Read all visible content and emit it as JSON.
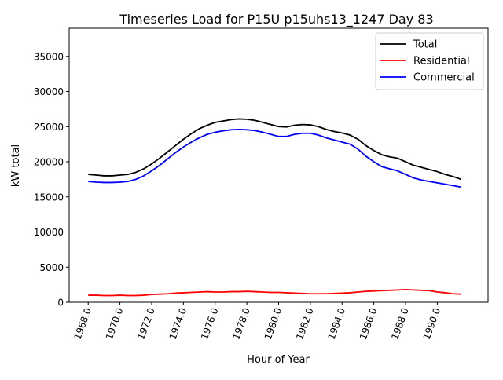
{
  "chart_data": {
    "type": "line",
    "title": "Timeseries Load for P15U p15uhs13_1247  Day 83",
    "xlabel": "Hour of Year",
    "ylabel": "kW total",
    "xlim": [
      1966.8,
      1993.2
    ],
    "ylim": [
      0,
      39000
    ],
    "xticks": [
      1968,
      1970,
      1972,
      1974,
      1976,
      1978,
      1980,
      1982,
      1984,
      1986,
      1988,
      1990
    ],
    "xtick_labels": [
      "1968.0",
      "1970.0",
      "1972.0",
      "1974.0",
      "1976.0",
      "1978.0",
      "1980.0",
      "1982.0",
      "1984.0",
      "1986.0",
      "1988.0",
      "1990.0"
    ],
    "yticks": [
      0,
      5000,
      10000,
      15000,
      20000,
      25000,
      30000,
      35000
    ],
    "ytick_labels": [
      "0",
      "5000",
      "10000",
      "15000",
      "20000",
      "25000",
      "30000",
      "35000"
    ],
    "legend_position": "top-right",
    "x": [
      1968.0,
      1968.5,
      1969.0,
      1969.5,
      1970.0,
      1970.5,
      1971.0,
      1971.5,
      1972.0,
      1972.5,
      1973.0,
      1973.5,
      1974.0,
      1974.5,
      1975.0,
      1975.5,
      1976.0,
      1976.5,
      1977.0,
      1977.5,
      1978.0,
      1978.5,
      1979.0,
      1979.5,
      1980.0,
      1980.5,
      1981.0,
      1981.5,
      1982.0,
      1982.5,
      1983.0,
      1983.5,
      1984.0,
      1984.5,
      1985.0,
      1985.5,
      1986.0,
      1986.5,
      1987.0,
      1987.5,
      1988.0,
      1988.5,
      1989.0,
      1989.5,
      1990.0,
      1990.5,
      1991.0,
      1991.5
    ],
    "series": [
      {
        "name": "Total",
        "color": "#000000",
        "values": [
          18200,
          18100,
          18000,
          18000,
          18100,
          18200,
          18500,
          19000,
          19700,
          20500,
          21400,
          22300,
          23200,
          24000,
          24700,
          25200,
          25600,
          25800,
          26000,
          26100,
          26050,
          25900,
          25600,
          25300,
          25000,
          24950,
          25200,
          25300,
          25250,
          25000,
          24600,
          24300,
          24100,
          23800,
          23200,
          22300,
          21600,
          21000,
          20700,
          20500,
          20000,
          19500,
          19200,
          18900,
          18600,
          18200,
          17900,
          17500
        ]
      },
      {
        "name": "Residential",
        "color": "#ff0000",
        "values": [
          1000,
          1000,
          950,
          950,
          1000,
          950,
          950,
          1000,
          1100,
          1150,
          1200,
          1300,
          1350,
          1400,
          1450,
          1500,
          1450,
          1450,
          1500,
          1500,
          1550,
          1500,
          1450,
          1400,
          1400,
          1350,
          1300,
          1250,
          1200,
          1200,
          1200,
          1250,
          1300,
          1350,
          1450,
          1550,
          1600,
          1650,
          1700,
          1750,
          1800,
          1750,
          1700,
          1650,
          1450,
          1350,
          1200,
          1150
        ]
      },
      {
        "name": "Commercial",
        "color": "#0000ff",
        "values": [
          17200,
          17100,
          17050,
          17050,
          17100,
          17200,
          17500,
          18000,
          18700,
          19500,
          20400,
          21300,
          22100,
          22800,
          23400,
          23900,
          24200,
          24400,
          24550,
          24600,
          24550,
          24450,
          24200,
          23900,
          23600,
          23600,
          23900,
          24050,
          24050,
          23800,
          23400,
          23100,
          22800,
          22500,
          21800,
          20800,
          20000,
          19300,
          19000,
          18700,
          18200,
          17700,
          17400,
          17200,
          17000,
          16800,
          16600,
          16400
        ]
      }
    ]
  }
}
